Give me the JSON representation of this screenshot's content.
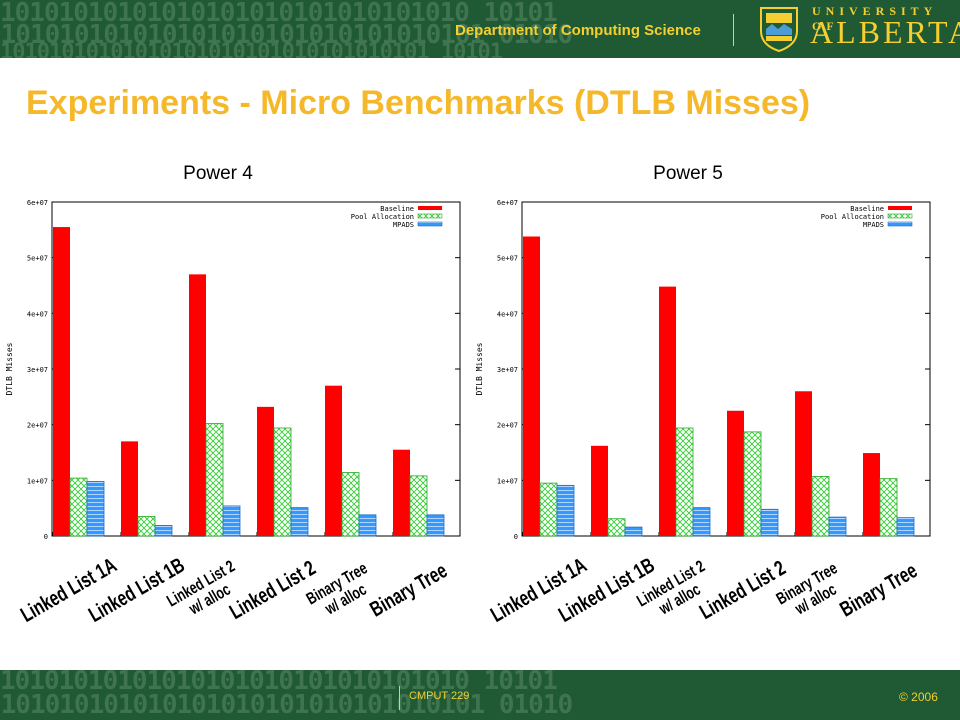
{
  "header": {
    "binary_lines": [
      "10101010101010101010101010101010 10101",
      "0101010101010101010101010101010101 01010",
      "10101010101010101010101010101010101 10101"
    ],
    "department": "Department of Computing Science",
    "university_top": "UNIVERSITY OF",
    "university_main": "ALBERTA"
  },
  "slide": {
    "title": "Experiments - Micro Benchmarks (DTLB Misses)"
  },
  "footer": {
    "binary_lines": [
      "10101010101010101010101010101010 10101",
      "0101010101010101010101010101010101 01010"
    ],
    "course": "CMPUT 229",
    "copyright": "© 2006"
  },
  "colors": {
    "header_bg": "#1f5a35",
    "accent_yellow": "#f5cf2f",
    "title_color": "#f5b82a",
    "baseline": "#ff0000",
    "pool_allocation": "#33cc33",
    "mpads": "#3399ff"
  },
  "chart_data": [
    {
      "type": "bar",
      "title": "Power 4",
      "ylabel": "DTLB Misses",
      "ylim": [
        0,
        60000000
      ],
      "yticks": [
        0,
        10000000,
        20000000,
        30000000,
        40000000,
        50000000,
        60000000
      ],
      "ytick_labels": [
        "0",
        "1e+07",
        "2e+07",
        "3e+07",
        "4e+07",
        "5e+07",
        "6e+07"
      ],
      "categories": [
        "Linked List 1A",
        "Linked List 1B",
        "Linked List 2 w/ alloc",
        "Linked List 2",
        "Binary Tree w/ alloc",
        "Binary Tree"
      ],
      "category_label_lines": [
        [
          "Linked List 1A"
        ],
        [
          "Linked List 1B"
        ],
        [
          "Linked List 2",
          "w/ alloc"
        ],
        [
          "Linked List 2"
        ],
        [
          "Binary Tree",
          "w/ alloc"
        ],
        [
          "Binary Tree"
        ]
      ],
      "legend_position": "top-right",
      "series": [
        {
          "name": "Baseline",
          "color": "#ff0000",
          "values": [
            55500000,
            17000000,
            47000000,
            23200000,
            27000000,
            15500000
          ]
        },
        {
          "name": "Pool Allocation",
          "color": "#33cc33",
          "values": [
            10400000,
            3500000,
            20200000,
            19400000,
            11400000,
            10800000
          ]
        },
        {
          "name": "MPADS",
          "color": "#3399ff",
          "values": [
            9800000,
            1900000,
            5400000,
            5100000,
            3800000,
            3800000
          ]
        }
      ]
    },
    {
      "type": "bar",
      "title": "Power 5",
      "ylabel": "DTLB Misses",
      "ylim": [
        0,
        60000000
      ],
      "yticks": [
        0,
        10000000,
        20000000,
        30000000,
        40000000,
        50000000,
        60000000
      ],
      "ytick_labels": [
        "0",
        "1e+07",
        "2e+07",
        "3e+07",
        "4e+07",
        "5e+07",
        "6e+07"
      ],
      "categories": [
        "Linked List 1A",
        "Linked List 1B",
        "Linked List 2 w/ alloc",
        "Linked List 2",
        "Binary Tree w/ alloc",
        "Binary Tree"
      ],
      "category_label_lines": [
        [
          "Linked List 1A"
        ],
        [
          "Linked List 1B"
        ],
        [
          "Linked List 2",
          "w/ alloc"
        ],
        [
          "Linked List 2"
        ],
        [
          "Binary Tree",
          "w/ alloc"
        ],
        [
          "Binary Tree"
        ]
      ],
      "legend_position": "top-right",
      "series": [
        {
          "name": "Baseline",
          "color": "#ff0000",
          "values": [
            53800000,
            16200000,
            44800000,
            22500000,
            26000000,
            14900000
          ]
        },
        {
          "name": "Pool Allocation",
          "color": "#33cc33",
          "values": [
            9500000,
            3100000,
            19400000,
            18700000,
            10700000,
            10300000
          ]
        },
        {
          "name": "MPADS",
          "color": "#3399ff",
          "values": [
            9100000,
            1600000,
            5100000,
            4800000,
            3400000,
            3300000
          ]
        }
      ]
    }
  ]
}
